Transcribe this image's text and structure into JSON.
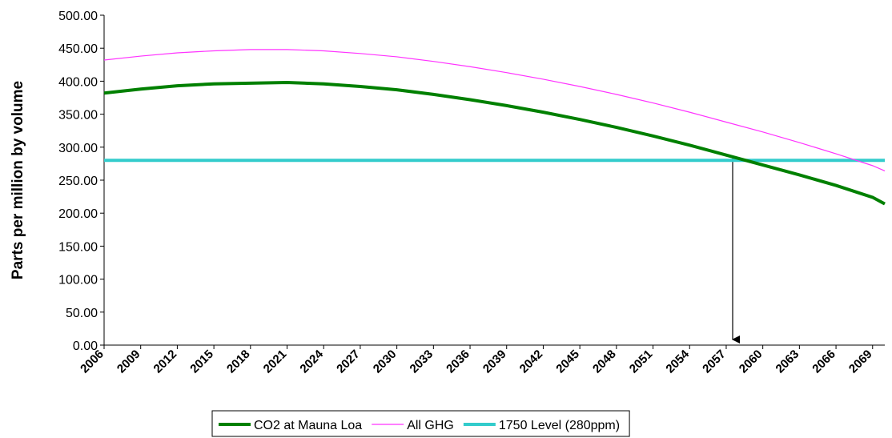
{
  "chart_data": {
    "type": "line",
    "y_label": "Parts per million by volume",
    "x": [
      2006,
      2009,
      2012,
      2015,
      2018,
      2021,
      2024,
      2027,
      2030,
      2033,
      2036,
      2039,
      2042,
      2045,
      2048,
      2051,
      2054,
      2057,
      2060,
      2063,
      2066,
      2069,
      2070
    ],
    "series": [
      {
        "name": "CO2 at Mauna Loa",
        "color": "#008000",
        "width": 4,
        "values": [
          382,
          388,
          393,
          396,
          397,
          398,
          396,
          392,
          387,
          380,
          372,
          363,
          353,
          342,
          330,
          317,
          303,
          288,
          273,
          258,
          242,
          224,
          214
        ]
      },
      {
        "name": "All GHG",
        "color": "#ff33ff",
        "width": 1.2,
        "values": [
          432,
          438,
          443,
          446,
          448,
          448,
          446,
          442,
          437,
          430,
          422,
          413,
          403,
          392,
          380,
          367,
          353,
          338,
          323,
          307,
          290,
          272,
          264
        ]
      },
      {
        "name": "1750 Level (280ppm)",
        "color": "#33cccc",
        "width": 4,
        "values": [
          280,
          280,
          280,
          280,
          280,
          280,
          280,
          280,
          280,
          280,
          280,
          280,
          280,
          280,
          280,
          280,
          280,
          280,
          280,
          280,
          280,
          280,
          280
        ]
      }
    ],
    "xlim": [
      2006,
      2070
    ],
    "xticks": [
      2006,
      2009,
      2012,
      2015,
      2018,
      2021,
      2024,
      2027,
      2030,
      2033,
      2036,
      2039,
      2042,
      2045,
      2048,
      2051,
      2054,
      2057,
      2060,
      2063,
      2066,
      2069
    ],
    "ylim": [
      0,
      500
    ],
    "yticks": [
      {
        "value": 0,
        "label": "0.00"
      },
      {
        "value": 50,
        "label": "50.00"
      },
      {
        "value": 100,
        "label": "100.00"
      },
      {
        "value": 150,
        "label": "150.00"
      },
      {
        "value": 200,
        "label": "200.00"
      },
      {
        "value": 250,
        "label": "250.00"
      },
      {
        "value": 300,
        "label": "300.00"
      },
      {
        "value": 350,
        "label": "350.00"
      },
      {
        "value": 400,
        "label": "400.00"
      },
      {
        "value": 450,
        "label": "450.00"
      },
      {
        "value": 500,
        "label": "500.00"
      }
    ],
    "grid": false,
    "legend": "bottom"
  }
}
